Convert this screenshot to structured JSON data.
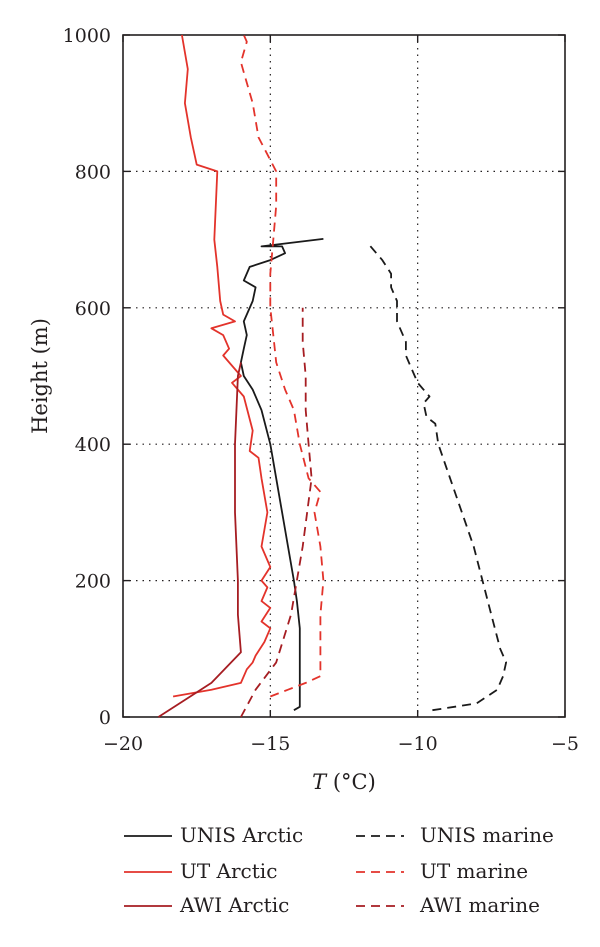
{
  "chart_data": {
    "type": "line",
    "xlabel_italic": "T",
    "xlabel_rest": " (°C)",
    "ylabel": "Height (m)",
    "xlim": [
      -20,
      -5
    ],
    "ylim": [
      0,
      1000
    ],
    "x_ticks": [
      -20,
      -15,
      -10,
      -5
    ],
    "x_tick_labels": [
      "−20",
      "−15",
      "−10",
      "−5"
    ],
    "y_ticks": [
      0,
      200,
      400,
      600,
      800,
      1000
    ],
    "y_tick_labels": [
      "0",
      "200",
      "400",
      "600",
      "800",
      "1000"
    ],
    "grid": "dotted",
    "legend_position": "bottom",
    "series": [
      {
        "name": "UNIS Arctic",
        "color": "#1a1a1a",
        "dash": "solid",
        "points": [
          [
            -14.2,
            10
          ],
          [
            -14.0,
            15
          ],
          [
            -14.0,
            30
          ],
          [
            -14.0,
            50
          ],
          [
            -14.0,
            70
          ],
          [
            -14.0,
            100
          ],
          [
            -14.0,
            130
          ],
          [
            -14.1,
            170
          ],
          [
            -14.2,
            200
          ],
          [
            -14.4,
            250
          ],
          [
            -14.6,
            300
          ],
          [
            -14.8,
            350
          ],
          [
            -15.0,
            400
          ],
          [
            -15.3,
            450
          ],
          [
            -15.6,
            480
          ],
          [
            -15.9,
            500
          ],
          [
            -16.0,
            520
          ],
          [
            -15.9,
            540
          ],
          [
            -15.8,
            560
          ],
          [
            -15.9,
            580
          ],
          [
            -15.6,
            610
          ],
          [
            -15.5,
            630
          ],
          [
            -15.9,
            640
          ],
          [
            -15.7,
            660
          ],
          [
            -15.0,
            670
          ],
          [
            -14.5,
            680
          ],
          [
            -14.6,
            690
          ],
          [
            -15.3,
            690
          ],
          [
            -13.2,
            701
          ]
        ]
      },
      {
        "name": "UT Arctic",
        "color": "#e3332b",
        "dash": "solid",
        "points": [
          [
            -18.3,
            30
          ],
          [
            -17.0,
            40
          ],
          [
            -16.0,
            50
          ],
          [
            -15.8,
            70
          ],
          [
            -15.6,
            80
          ],
          [
            -15.5,
            90
          ],
          [
            -15.2,
            110
          ],
          [
            -15.0,
            130
          ],
          [
            -15.3,
            140
          ],
          [
            -15.0,
            160
          ],
          [
            -15.3,
            170
          ],
          [
            -15.1,
            190
          ],
          [
            -15.3,
            200
          ],
          [
            -15.0,
            220
          ],
          [
            -15.3,
            250
          ],
          [
            -15.1,
            300
          ],
          [
            -15.3,
            350
          ],
          [
            -15.4,
            380
          ],
          [
            -15.7,
            390
          ],
          [
            -15.6,
            420
          ],
          [
            -15.9,
            470
          ],
          [
            -16.3,
            490
          ],
          [
            -16.0,
            500
          ],
          [
            -16.6,
            530
          ],
          [
            -16.4,
            540
          ],
          [
            -16.6,
            560
          ],
          [
            -17.0,
            570
          ],
          [
            -16.2,
            580
          ],
          [
            -16.6,
            590
          ],
          [
            -16.7,
            610
          ],
          [
            -16.8,
            660
          ],
          [
            -16.9,
            700
          ],
          [
            -16.8,
            800
          ],
          [
            -17.5,
            810
          ],
          [
            -17.7,
            850
          ],
          [
            -17.9,
            900
          ],
          [
            -17.8,
            950
          ],
          [
            -18.0,
            1000
          ]
        ]
      },
      {
        "name": "AWI Arctic",
        "color": "#a61d22",
        "dash": "solid",
        "points": [
          [
            -18.8,
            0
          ],
          [
            -17.0,
            50
          ],
          [
            -16.0,
            95
          ],
          [
            -16.1,
            150
          ],
          [
            -16.1,
            200
          ],
          [
            -16.2,
            300
          ],
          [
            -16.2,
            400
          ],
          [
            -16.1,
            500
          ],
          [
            -16.0,
            520
          ]
        ]
      },
      {
        "name": "UNIS marine",
        "color": "#1a1a1a",
        "dash": "dashed",
        "points": [
          [
            -9.5,
            10
          ],
          [
            -8.0,
            20
          ],
          [
            -7.3,
            40
          ],
          [
            -7.1,
            60
          ],
          [
            -7.0,
            80
          ],
          [
            -7.2,
            100
          ],
          [
            -7.5,
            150
          ],
          [
            -7.8,
            200
          ],
          [
            -8.1,
            250
          ],
          [
            -8.5,
            300
          ],
          [
            -8.9,
            350
          ],
          [
            -9.3,
            400
          ],
          [
            -9.4,
            430
          ],
          [
            -9.7,
            440
          ],
          [
            -9.8,
            460
          ],
          [
            -9.6,
            470
          ],
          [
            -10.0,
            490
          ],
          [
            -10.2,
            510
          ],
          [
            -10.4,
            530
          ],
          [
            -10.4,
            550
          ],
          [
            -10.7,
            580
          ],
          [
            -10.7,
            610
          ],
          [
            -10.9,
            630
          ],
          [
            -10.9,
            650
          ],
          [
            -11.2,
            670
          ],
          [
            -11.4,
            680
          ],
          [
            -11.7,
            695
          ]
        ]
      },
      {
        "name": "UT marine",
        "color": "#e3332b",
        "dash": "dashed",
        "points": [
          [
            -15.0,
            30
          ],
          [
            -14.4,
            40
          ],
          [
            -13.8,
            50
          ],
          [
            -13.3,
            60
          ],
          [
            -13.3,
            100
          ],
          [
            -13.3,
            150
          ],
          [
            -13.2,
            200
          ],
          [
            -13.3,
            250
          ],
          [
            -13.5,
            300
          ],
          [
            -13.3,
            330
          ],
          [
            -13.7,
            350
          ],
          [
            -14.0,
            400
          ],
          [
            -14.2,
            450
          ],
          [
            -14.5,
            480
          ],
          [
            -14.8,
            520
          ],
          [
            -14.9,
            560
          ],
          [
            -15.0,
            600
          ],
          [
            -15.0,
            650
          ],
          [
            -14.9,
            700
          ],
          [
            -14.8,
            750
          ],
          [
            -14.8,
            800
          ],
          [
            -15.4,
            850
          ],
          [
            -15.6,
            900
          ],
          [
            -16.0,
            960
          ],
          [
            -15.8,
            990
          ],
          [
            -15.9,
            1000
          ]
        ]
      },
      {
        "name": "AWI marine",
        "color": "#a61d22",
        "dash": "dashed",
        "points": [
          [
            -16.0,
            0
          ],
          [
            -15.5,
            40
          ],
          [
            -14.8,
            80
          ],
          [
            -14.3,
            150
          ],
          [
            -13.9,
            250
          ],
          [
            -13.6,
            350
          ],
          [
            -13.7,
            400
          ],
          [
            -13.8,
            450
          ],
          [
            -13.8,
            500
          ],
          [
            -13.9,
            550
          ],
          [
            -13.9,
            600
          ]
        ]
      }
    ],
    "legend_left": [
      "UNIS Arctic",
      "UT Arctic",
      "AWI Arctic"
    ],
    "legend_right": [
      "UNIS marine",
      "UT marine",
      "AWI marine"
    ]
  }
}
